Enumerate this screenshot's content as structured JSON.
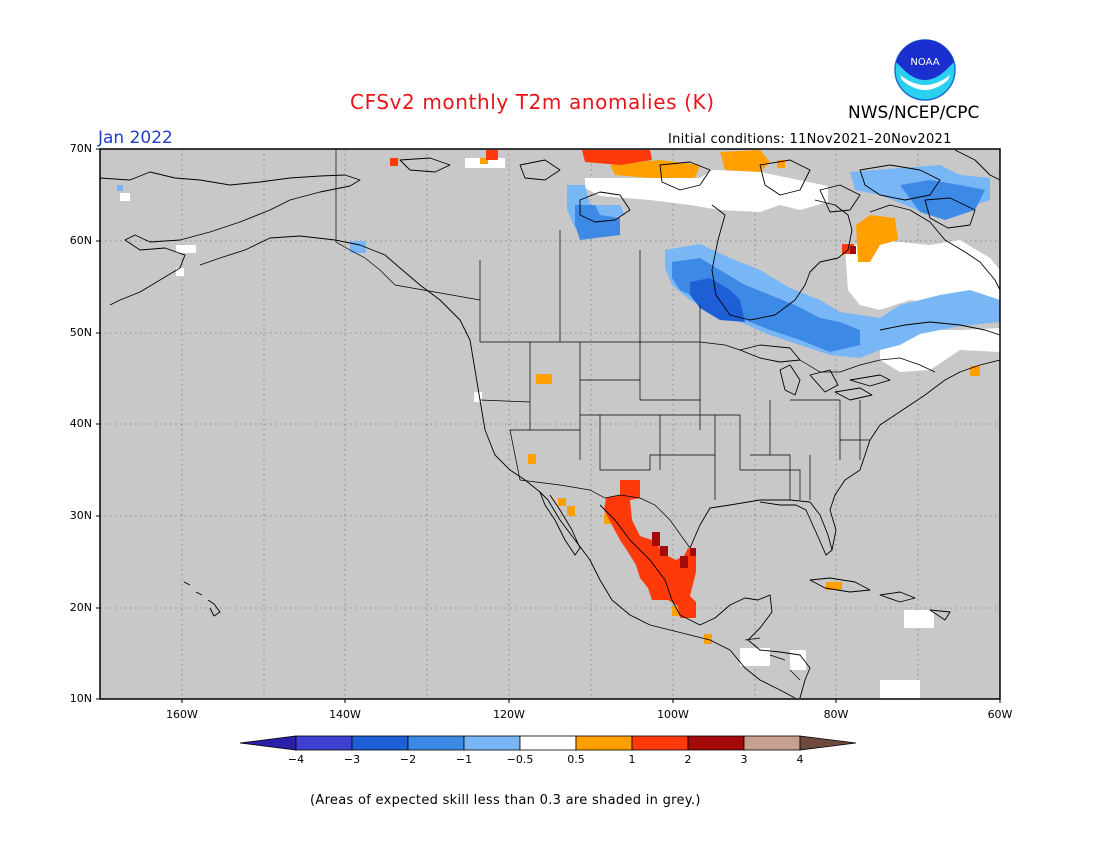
{
  "title": "CFSv2 monthly T2m anomalies (K)",
  "agency": "NWS/NCEP/CPC",
  "logo_text": "NOAA",
  "month": "Jan 2022",
  "initial_conditions": "Initial conditions: 11Nov2021–20Nov2021",
  "footnote": "(Areas of expected skill less than 0.3 are shaded in grey.)",
  "map": {
    "region": "North America",
    "lon_range": [
      -170,
      -60
    ],
    "lat_range": [
      10,
      70
    ],
    "background_color": "#c8c8c8",
    "lat_labels": [
      "70N",
      "60N",
      "50N",
      "40N",
      "30N",
      "20N",
      "10N"
    ],
    "lon_labels": [
      "160W",
      "140W",
      "120W",
      "100W",
      "80W",
      "60W"
    ]
  },
  "colorbar": {
    "labels": [
      "−4",
      "−3",
      "−2",
      "−1",
      "−0.5",
      "0.5",
      "1",
      "2",
      "3",
      "4"
    ],
    "colors": [
      "#2a1fa8",
      "#3f3fd0",
      "#1e5fd6",
      "#3d8ae6",
      "#78b6f5",
      "#ffffff",
      "#ffa000",
      "#ff3a0a",
      "#a50a0a",
      "#c8a090",
      "#6e4a3c"
    ]
  }
}
